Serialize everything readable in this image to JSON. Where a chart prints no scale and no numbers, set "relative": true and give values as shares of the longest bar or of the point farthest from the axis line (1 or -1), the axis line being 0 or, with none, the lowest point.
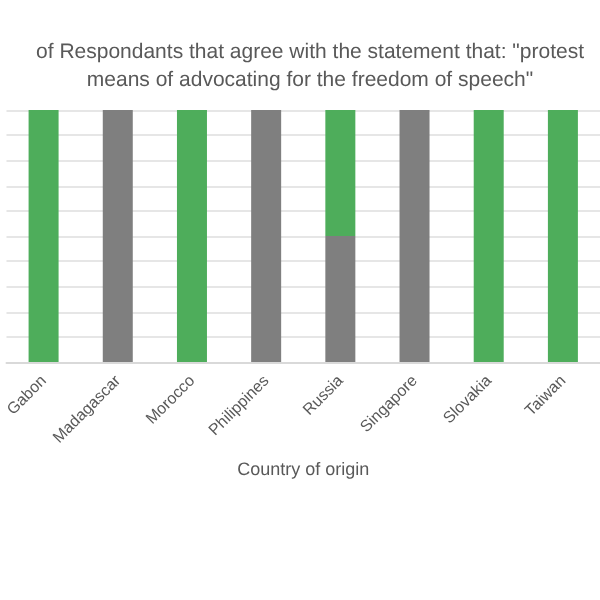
{
  "chart_data": {
    "type": "bar",
    "title": "of Respondants that agree with the statement that: \"protest\nmeans of advocating for the freedom of speech\"",
    "xlabel": "Country of origin",
    "categories": [
      "Gabon",
      "Madagascar",
      "Morocco",
      "Philippines",
      "Russia",
      "Singapore",
      "Slovakia",
      "Taiwan"
    ],
    "series": [
      {
        "color": "#7f7f7f",
        "values": [
          0,
          1,
          0,
          1,
          0.5,
          1,
          0,
          0
        ]
      },
      {
        "color": "#4ead5b",
        "values": [
          1,
          0,
          1,
          0,
          0.5,
          0,
          1,
          1
        ]
      }
    ],
    "stacked": true,
    "relative": true,
    "grid": "y"
  }
}
